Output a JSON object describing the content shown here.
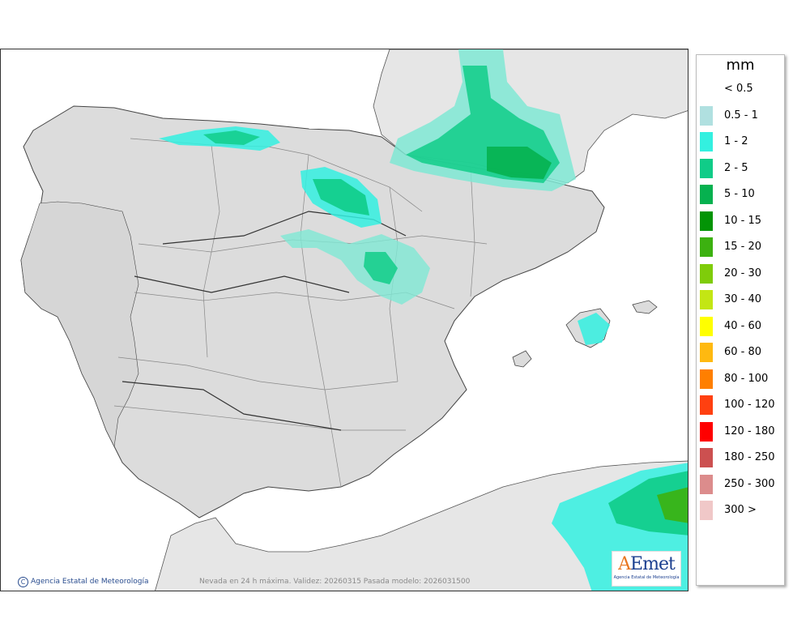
{
  "map": {
    "credit": "Agencia Estatal de Meteorología",
    "validity_text": "Nevada en 24 h máxima. Validez: 20260315 Pasada modelo: 2026031500",
    "colors": {
      "sea": "#ffffff",
      "land": "#e6e6e6",
      "border": "#333333"
    }
  },
  "logo": {
    "mark_a": "A",
    "mark_rest": "Emet",
    "subtitle": "Agencia Estatal de Meteorología"
  },
  "legend": {
    "unit": "mm",
    "items": [
      {
        "label": "< 0.5",
        "color": "#ffffff"
      },
      {
        "label": "0.5 - 1",
        "color": "#b0e0e0"
      },
      {
        "label": "1 - 2",
        "color": "#33f0e0"
      },
      {
        "label": "2 - 5",
        "color": "#10cc88"
      },
      {
        "label": "5 - 10",
        "color": "#06b14f"
      },
      {
        "label": "10 - 15",
        "color": "#039406"
      },
      {
        "label": "15 - 20",
        "color": "#3cb110"
      },
      {
        "label": "20 - 30",
        "color": "#7fcc0a"
      },
      {
        "label": "30 - 40",
        "color": "#c3e614"
      },
      {
        "label": "40 - 60",
        "color": "#ffff00"
      },
      {
        "label": "60 - 80",
        "color": "#ffb910"
      },
      {
        "label": "80 - 100",
        "color": "#ff7f00"
      },
      {
        "label": "100 - 120",
        "color": "#ff4010"
      },
      {
        "label": "120 - 180",
        "color": "#ff0000"
      },
      {
        "label": "180 - 250",
        "color": "#cc5050"
      },
      {
        "label": "250 - 300",
        "color": "#dc8c8c"
      },
      {
        "label": "300 >",
        "color": "#f0c8c8"
      }
    ]
  }
}
